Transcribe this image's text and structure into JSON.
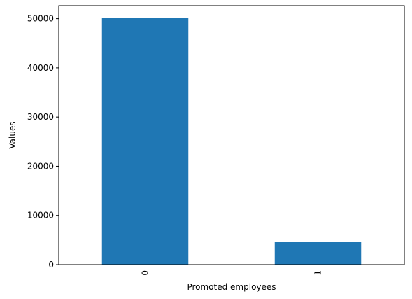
{
  "chart_data": {
    "type": "bar",
    "categories": [
      "0",
      "1"
    ],
    "values": [
      50140,
      4668
    ],
    "title": "",
    "xlabel": "Promoted employees",
    "ylabel": "Values",
    "ylim": [
      0,
      52650
    ],
    "yticks": [
      0,
      10000,
      20000,
      30000,
      40000,
      50000
    ],
    "yticklabels": [
      "0",
      "10000",
      "20000",
      "30000",
      "40000",
      "50000"
    ],
    "xtick_rotation": "vertical",
    "bar_color": "#1f77b4",
    "grid": false,
    "legend": "none"
  }
}
